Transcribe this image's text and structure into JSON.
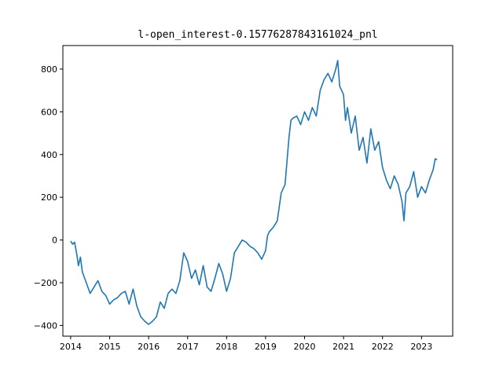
{
  "chart_data": {
    "type": "line",
    "title": "l-open_interest-0.15776287843161024_pnl",
    "xlabel": "",
    "ylabel": "",
    "grid": false,
    "legend": "none",
    "xlim": [
      2013.8,
      2023.8
    ],
    "ylim": [
      -450,
      910
    ],
    "x_ticks": [
      2014,
      2015,
      2016,
      2017,
      2018,
      2019,
      2020,
      2021,
      2022,
      2023
    ],
    "y_ticks": [
      -400,
      -200,
      0,
      200,
      400,
      600,
      800
    ],
    "series": [
      {
        "color": "#1f77b4",
        "points": [
          [
            2014.0,
            -5
          ],
          [
            2014.05,
            -20
          ],
          [
            2014.1,
            -10
          ],
          [
            2014.15,
            -60
          ],
          [
            2014.2,
            -120
          ],
          [
            2014.25,
            -80
          ],
          [
            2014.3,
            -150
          ],
          [
            2014.4,
            -200
          ],
          [
            2014.5,
            -250
          ],
          [
            2014.6,
            -220
          ],
          [
            2014.7,
            -190
          ],
          [
            2014.8,
            -240
          ],
          [
            2014.9,
            -260
          ],
          [
            2015.0,
            -300
          ],
          [
            2015.1,
            -280
          ],
          [
            2015.2,
            -270
          ],
          [
            2015.3,
            -250
          ],
          [
            2015.4,
            -240
          ],
          [
            2015.5,
            -300
          ],
          [
            2015.6,
            -230
          ],
          [
            2015.7,
            -310
          ],
          [
            2015.8,
            -360
          ],
          [
            2015.9,
            -380
          ],
          [
            2016.0,
            -395
          ],
          [
            2016.1,
            -380
          ],
          [
            2016.2,
            -360
          ],
          [
            2016.3,
            -290
          ],
          [
            2016.4,
            -320
          ],
          [
            2016.5,
            -250
          ],
          [
            2016.6,
            -230
          ],
          [
            2016.7,
            -250
          ],
          [
            2016.8,
            -190
          ],
          [
            2016.9,
            -60
          ],
          [
            2017.0,
            -100
          ],
          [
            2017.1,
            -180
          ],
          [
            2017.2,
            -140
          ],
          [
            2017.3,
            -210
          ],
          [
            2017.4,
            -120
          ],
          [
            2017.5,
            -220
          ],
          [
            2017.6,
            -240
          ],
          [
            2017.7,
            -180
          ],
          [
            2017.8,
            -110
          ],
          [
            2017.9,
            -160
          ],
          [
            2018.0,
            -240
          ],
          [
            2018.1,
            -180
          ],
          [
            2018.2,
            -60
          ],
          [
            2018.3,
            -30
          ],
          [
            2018.4,
            0
          ],
          [
            2018.5,
            -10
          ],
          [
            2018.6,
            -30
          ],
          [
            2018.7,
            -40
          ],
          [
            2018.8,
            -60
          ],
          [
            2018.9,
            -90
          ],
          [
            2019.0,
            -50
          ],
          [
            2019.05,
            20
          ],
          [
            2019.1,
            40
          ],
          [
            2019.2,
            60
          ],
          [
            2019.3,
            90
          ],
          [
            2019.4,
            220
          ],
          [
            2019.5,
            260
          ],
          [
            2019.6,
            480
          ],
          [
            2019.65,
            560
          ],
          [
            2019.7,
            570
          ],
          [
            2019.8,
            580
          ],
          [
            2019.9,
            540
          ],
          [
            2020.0,
            600
          ],
          [
            2020.1,
            560
          ],
          [
            2020.2,
            620
          ],
          [
            2020.3,
            580
          ],
          [
            2020.4,
            700
          ],
          [
            2020.5,
            750
          ],
          [
            2020.6,
            780
          ],
          [
            2020.7,
            740
          ],
          [
            2020.8,
            800
          ],
          [
            2020.85,
            840
          ],
          [
            2020.9,
            720
          ],
          [
            2021.0,
            680
          ],
          [
            2021.05,
            560
          ],
          [
            2021.1,
            620
          ],
          [
            2021.2,
            500
          ],
          [
            2021.3,
            580
          ],
          [
            2021.4,
            420
          ],
          [
            2021.5,
            480
          ],
          [
            2021.6,
            360
          ],
          [
            2021.7,
            520
          ],
          [
            2021.8,
            420
          ],
          [
            2021.9,
            460
          ],
          [
            2022.0,
            340
          ],
          [
            2022.1,
            280
          ],
          [
            2022.2,
            240
          ],
          [
            2022.3,
            300
          ],
          [
            2022.4,
            260
          ],
          [
            2022.5,
            180
          ],
          [
            2022.55,
            90
          ],
          [
            2022.6,
            220
          ],
          [
            2022.7,
            250
          ],
          [
            2022.8,
            320
          ],
          [
            2022.9,
            200
          ],
          [
            2023.0,
            250
          ],
          [
            2023.1,
            220
          ],
          [
            2023.2,
            280
          ],
          [
            2023.3,
            330
          ],
          [
            2023.35,
            380
          ],
          [
            2023.4,
            375
          ]
        ]
      }
    ]
  }
}
